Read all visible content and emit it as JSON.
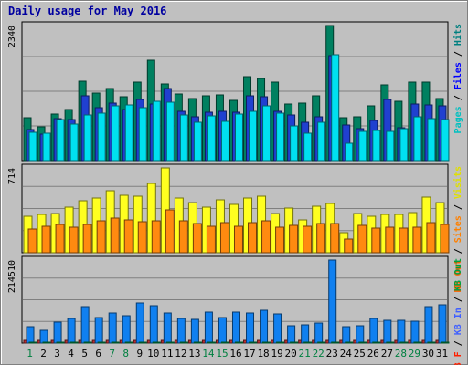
{
  "chart_data": {
    "type": "bar",
    "title": "Daily usage for May 2016",
    "categories": [
      "1",
      "2",
      "3",
      "4",
      "5",
      "6",
      "7",
      "8",
      "9",
      "10",
      "11",
      "12",
      "13",
      "14",
      "15",
      "16",
      "17",
      "18",
      "19",
      "20",
      "21",
      "22",
      "23",
      "24",
      "25",
      "26",
      "27",
      "28",
      "29",
      "30",
      "31"
    ],
    "weekend_day_color": "#008040",
    "weekday_color": "#000000",
    "weekend_days": [
      1,
      7,
      8,
      14,
      15,
      21,
      22,
      28,
      29
    ],
    "panels": [
      {
        "id": "hits",
        "max_label": "2340",
        "ymax": 2340,
        "right_label": [
          {
            "text": "Pages",
            "color": "#00c0c0"
          },
          {
            "text": " / ",
            "color": "#000000"
          },
          {
            "text": "Files",
            "color": "#0000ff"
          },
          {
            "text": " / ",
            "color": "#000000"
          },
          {
            "text": "Hits",
            "color": "#008080"
          }
        ],
        "series": [
          {
            "name": "Hits",
            "color": "#008060",
            "values": [
              744,
              580,
              803,
              878,
              1375,
              1170,
              1244,
              1102,
              1359,
              1738,
              1330,
              1154,
              1082,
              1128,
              1142,
              1047,
              1461,
              1421,
              1365,
              975,
              990,
              1128,
              2340,
              743,
              764,
              951,
              1320,
              1034,
              1358,
              1358,
              1073
            ]
          },
          {
            "name": "Files",
            "color": "#2040d0",
            "values": [
              541,
              463,
              726,
              708,
              1129,
              912,
              999,
              893,
              1059,
              984,
              1243,
              852,
              763,
              833,
              850,
              839,
              1129,
              1107,
              859,
              797,
              667,
              757,
              1812,
              620,
              552,
              688,
              1062,
              569,
              981,
              965,
              950
            ]
          },
          {
            "name": "Pages",
            "color": "#00e0f0",
            "values": [
              494,
              468,
              705,
              634,
              791,
              817,
              943,
              958,
              922,
              1028,
              1010,
              786,
              670,
              774,
              681,
              807,
              855,
              943,
              820,
              605,
              473,
              666,
              1840,
              294,
              512,
              519,
              505,
              546,
              757,
              732,
              717
            ]
          }
        ]
      },
      {
        "id": "visits",
        "max_label": "714",
        "ymax": 714,
        "right_label": [
          {
            "text": "KB Out",
            "color": "#ff6000"
          },
          {
            "text": " / ",
            "color": "#000000"
          },
          {
            "text": "Sites",
            "color": "#ff8000"
          },
          {
            "text": " / ",
            "color": "#000000"
          },
          {
            "text": "Visits",
            "color": "#e0e000"
          }
        ],
        "series": [
          {
            "name": "Visits",
            "color": "#ffff20",
            "values": [
              304,
              319,
              332,
              387,
              440,
              462,
              524,
              486,
              478,
              580,
              714,
              461,
              422,
              383,
              449,
              404,
              457,
              475,
              328,
              380,
              274,
              392,
              416,
              166,
              330,
              306,
              325,
              320,
              336,
              468,
              420
            ]
          },
          {
            "name": "Sites",
            "color": "#ff8a10",
            "values": [
              202,
              220,
              237,
              213,
              238,
              267,
              293,
              275,
              262,
              272,
              363,
              265,
              248,
              222,
              255,
              221,
              257,
              267,
              217,
              228,
              223,
              243,
              249,
              113,
              227,
              211,
              214,
              209,
              215,
              253,
              235
            ]
          }
        ]
      },
      {
        "id": "kbytes",
        "max_label": "214510",
        "ymax": 214510,
        "right_label": [
          {
            "text": "KB F",
            "color": "#ff2000"
          },
          {
            "text": " / ",
            "color": "#000000"
          },
          {
            "text": "KB In",
            "color": "#4060ff"
          },
          {
            "text": " / ",
            "color": "#000000"
          },
          {
            "text": "KB Out",
            "color": "#00a040"
          }
        ],
        "series": [
          {
            "name": "KB F",
            "color": "#c03030",
            "values": [
              7000,
              6000,
              6000,
              6000,
              7000,
              6000,
              7000,
              6000,
              7000,
              7000,
              7000,
              6000,
              6000,
              6000,
              7000,
              6000,
              7000,
              7000,
              6000,
              6000,
              6000,
              6000,
              8000,
              6000,
              6000,
              6000,
              7000,
              6000,
              6000,
              6000,
              6000
            ]
          },
          {
            "name": "KB In",
            "color": "#1080f0",
            "values": [
              41952,
              33210,
              55180,
              62980,
              95270,
              64880,
              78300,
              71790,
              104000,
              96290,
              77830,
              63520,
              62170,
              81200,
              65590,
              80900,
              76630,
              84020,
              75280,
              45490,
              46200,
              50820,
              214510,
              42480,
              44990,
              64800,
              59840,
              59050,
              56360,
              95210,
              98080
            ]
          },
          {
            "name": "KB Out",
            "color": "#00c060",
            "values": [
              1000,
              1000,
              1000,
              1000,
              1000,
              1000,
              1000,
              1000,
              1000,
              1000,
              1000,
              1000,
              1000,
              1000,
              1000,
              1000,
              1000,
              1000,
              1000,
              1000,
              1000,
              1000,
              2000,
              1000,
              1000,
              1000,
              1000,
              1000,
              1000,
              1000,
              1000
            ]
          }
        ]
      }
    ]
  }
}
